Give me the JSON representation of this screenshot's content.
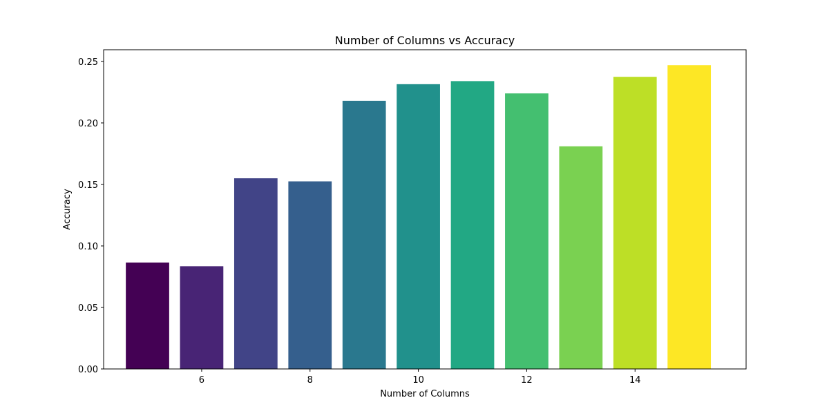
{
  "chart_data": {
    "type": "bar",
    "title": "Number of Columns vs Accuracy",
    "xlabel": "Number of Columns",
    "ylabel": "Accuracy",
    "x": [
      5,
      6,
      7,
      8,
      9,
      10,
      11,
      12,
      13,
      14,
      15
    ],
    "values": [
      0.0865,
      0.0835,
      0.155,
      0.1525,
      0.218,
      0.2315,
      0.234,
      0.224,
      0.181,
      0.2375,
      0.247
    ],
    "colors": [
      "#440154",
      "#482475",
      "#414487",
      "#355f8d",
      "#2a788e",
      "#21918c",
      "#22a884",
      "#44bf70",
      "#7ad151",
      "#bddf26",
      "#fde725"
    ],
    "xlim": [
      4.19,
      16.05
    ],
    "ylim": [
      0,
      0.2595
    ],
    "xticks": [
      6,
      8,
      10,
      12,
      14
    ],
    "xtick_labels": [
      "6",
      "8",
      "10",
      "12",
      "14"
    ],
    "yticks": [
      0,
      0.05,
      0.1,
      0.15,
      0.2,
      0.25
    ],
    "ytick_labels": [
      "0.00",
      "0.05",
      "0.10",
      "0.15",
      "0.20",
      "0.25"
    ],
    "grid": false,
    "legend": "none"
  }
}
